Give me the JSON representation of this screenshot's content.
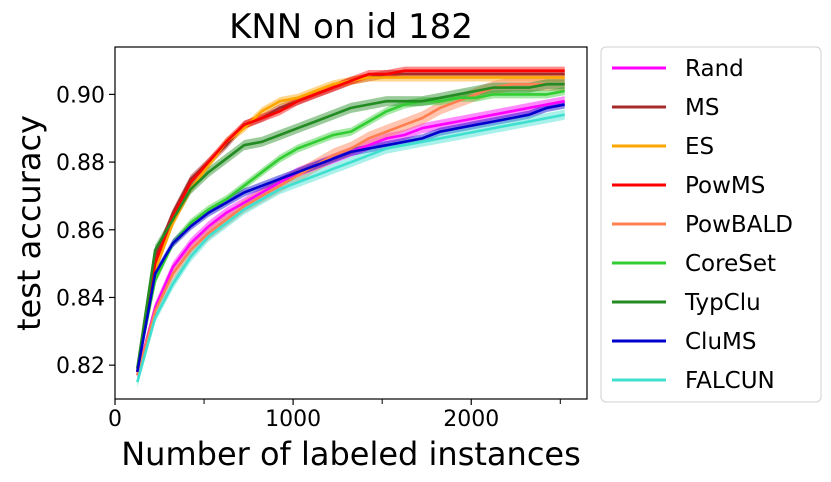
{
  "chart_data": {
    "type": "line",
    "title": "KNN on id 182",
    "xlabel": "Number of labeled instances",
    "ylabel": "test accuracy",
    "xlim": [
      0,
      2650
    ],
    "ylim": [
      0.81,
      0.914
    ],
    "xticks": [
      0,
      1000,
      2000
    ],
    "yticks": [
      0.82,
      0.84,
      0.86,
      0.88,
      0.9
    ],
    "ytick_labels": [
      "0.82",
      "0.84",
      "0.86",
      "0.88",
      "0.90"
    ],
    "xtick_labels": [
      "0",
      "1000",
      "2000"
    ],
    "grid": false,
    "legend_position": "right",
    "x": [
      125,
      225,
      325,
      425,
      525,
      625,
      725,
      825,
      925,
      1025,
      1125,
      1225,
      1325,
      1425,
      1525,
      1625,
      1725,
      1825,
      1925,
      2025,
      2125,
      2225,
      2325,
      2425,
      2525
    ],
    "series": [
      {
        "name": "Rand",
        "color": "#ff00ff",
        "band": 0.0015,
        "values": [
          0.817,
          0.837,
          0.849,
          0.856,
          0.861,
          0.865,
          0.868,
          0.871,
          0.874,
          0.877,
          0.879,
          0.881,
          0.883,
          0.885,
          0.887,
          0.888,
          0.89,
          0.891,
          0.892,
          0.893,
          0.894,
          0.895,
          0.896,
          0.897,
          0.898
        ]
      },
      {
        "name": "MS",
        "color": "#a52a2a",
        "band": 0.0012,
        "values": [
          0.818,
          0.852,
          0.865,
          0.875,
          0.88,
          0.885,
          0.891,
          0.893,
          0.896,
          0.898,
          0.9,
          0.902,
          0.904,
          0.905,
          0.906,
          0.906,
          0.906,
          0.906,
          0.906,
          0.906,
          0.906,
          0.906,
          0.906,
          0.906,
          0.906
        ]
      },
      {
        "name": "ES",
        "color": "#ffa500",
        "band": 0.0012,
        "values": [
          0.818,
          0.848,
          0.862,
          0.872,
          0.879,
          0.886,
          0.89,
          0.895,
          0.898,
          0.899,
          0.901,
          0.903,
          0.904,
          0.905,
          0.905,
          0.905,
          0.905,
          0.905,
          0.905,
          0.905,
          0.905,
          0.905,
          0.905,
          0.905,
          0.905
        ]
      },
      {
        "name": "PowMS",
        "color": "#ff0000",
        "band": 0.0012,
        "values": [
          0.818,
          0.85,
          0.864,
          0.874,
          0.88,
          0.886,
          0.891,
          0.893,
          0.895,
          0.898,
          0.9,
          0.902,
          0.904,
          0.906,
          0.906,
          0.907,
          0.907,
          0.907,
          0.907,
          0.907,
          0.907,
          0.907,
          0.907,
          0.907,
          0.907
        ]
      },
      {
        "name": "PowBALD",
        "color": "#ff7f50",
        "band": 0.002,
        "values": [
          0.817,
          0.836,
          0.847,
          0.854,
          0.859,
          0.863,
          0.867,
          0.87,
          0.873,
          0.876,
          0.879,
          0.882,
          0.884,
          0.887,
          0.889,
          0.891,
          0.893,
          0.896,
          0.898,
          0.9,
          0.902,
          0.903,
          0.903,
          0.903,
          0.903
        ]
      },
      {
        "name": "CoreSet",
        "color": "#32cd32",
        "band": 0.0012,
        "values": [
          0.819,
          0.845,
          0.856,
          0.862,
          0.866,
          0.869,
          0.873,
          0.877,
          0.881,
          0.884,
          0.886,
          0.888,
          0.889,
          0.892,
          0.895,
          0.897,
          0.898,
          0.898,
          0.899,
          0.899,
          0.9,
          0.9,
          0.9,
          0.9,
          0.901
        ]
      },
      {
        "name": "TypClu",
        "color": "#228b22",
        "band": 0.0015,
        "values": [
          0.819,
          0.854,
          0.863,
          0.872,
          0.877,
          0.881,
          0.885,
          0.886,
          0.888,
          0.89,
          0.892,
          0.894,
          0.896,
          0.897,
          0.898,
          0.898,
          0.898,
          0.899,
          0.9,
          0.901,
          0.902,
          0.902,
          0.902,
          0.903,
          0.903
        ]
      },
      {
        "name": "CluMS",
        "color": "#0000cd",
        "band": 0.0012,
        "values": [
          0.818,
          0.847,
          0.856,
          0.861,
          0.865,
          0.868,
          0.871,
          0.873,
          0.875,
          0.877,
          0.879,
          0.881,
          0.883,
          0.884,
          0.885,
          0.886,
          0.887,
          0.889,
          0.89,
          0.891,
          0.892,
          0.893,
          0.894,
          0.896,
          0.897
        ]
      },
      {
        "name": "FALCUN",
        "color": "#40e0d0",
        "band": 0.0015,
        "values": [
          0.815,
          0.834,
          0.844,
          0.852,
          0.858,
          0.862,
          0.866,
          0.869,
          0.872,
          0.874,
          0.876,
          0.878,
          0.88,
          0.882,
          0.884,
          0.885,
          0.886,
          0.887,
          0.888,
          0.889,
          0.89,
          0.891,
          0.892,
          0.893,
          0.894
        ]
      }
    ]
  }
}
